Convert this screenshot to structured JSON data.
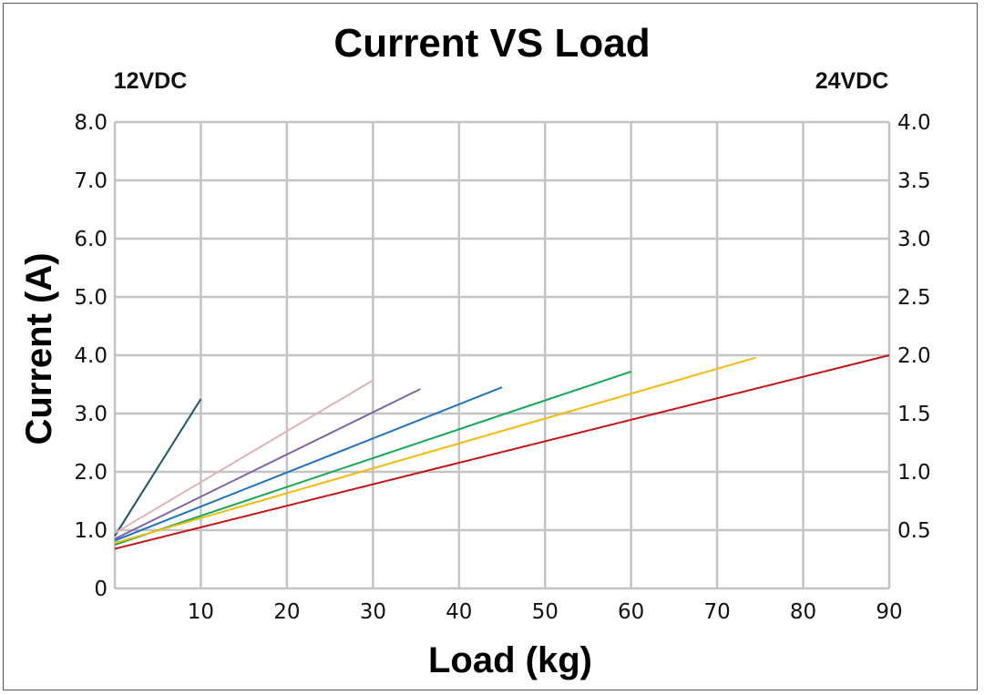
{
  "chart_data": {
    "type": "line",
    "title": "Current VS Load",
    "xlabel": "Load (kg)",
    "ylabel": "Current (A)",
    "left_axis_label": "12VDC",
    "right_axis_label": "24VDC",
    "xlim": [
      0,
      90
    ],
    "ylim": [
      0,
      8
    ],
    "y2lim": [
      0,
      4
    ],
    "x_ticks": [
      "10",
      "20",
      "30",
      "40",
      "50",
      "60",
      "70",
      "80",
      "90"
    ],
    "y_ticks": [
      "0",
      "1.0",
      "2.0",
      "3.0",
      "4.0",
      "5.0",
      "6.0",
      "7.0",
      "8.0"
    ],
    "y2_ticks": [
      "0.5",
      "1.0",
      "1.5",
      "2.0",
      "2.5",
      "3.0",
      "3.5",
      "4.0"
    ],
    "grid": true,
    "series": [
      {
        "color": "#1e5563",
        "x": [
          0,
          10
        ],
        "y": [
          0.9,
          3.25
        ]
      },
      {
        "color": "#e0b4b4",
        "x": [
          0,
          30
        ],
        "y": [
          0.95,
          3.57
        ]
      },
      {
        "color": "#7e64a8",
        "x": [
          0,
          35.5
        ],
        "y": [
          0.85,
          3.42
        ]
      },
      {
        "color": "#1f73c2",
        "x": [
          0,
          45
        ],
        "y": [
          0.82,
          3.45
        ]
      },
      {
        "color": "#16a853",
        "x": [
          0,
          60
        ],
        "y": [
          0.75,
          3.72
        ]
      },
      {
        "color": "#f3bb12",
        "x": [
          0,
          74.5
        ],
        "y": [
          0.78,
          3.96
        ]
      },
      {
        "color": "#c41212",
        "x": [
          0,
          90
        ],
        "y": [
          0.68,
          4.0
        ]
      }
    ]
  }
}
